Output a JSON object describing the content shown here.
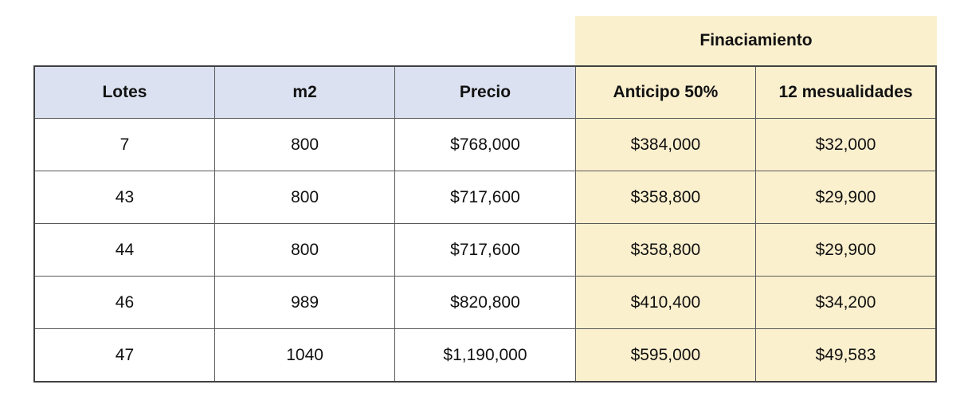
{
  "banner": {
    "title": "Finaciamiento"
  },
  "table": {
    "columns": [
      "Lotes",
      "m2",
      "Precio",
      "Anticipo 50%",
      "12 mesualidades"
    ],
    "rows": [
      [
        "7",
        "800",
        "$768,000",
        "$384,000",
        "$32,000"
      ],
      [
        "43",
        "800",
        "$717,600",
        "$358,800",
        "$29,900"
      ],
      [
        "44",
        "800",
        "$717,600",
        "$358,800",
        "$29,900"
      ],
      [
        "46",
        "989",
        "$820,800",
        "$410,400",
        "$34,200"
      ],
      [
        "47",
        "1040",
        "$1,190,000",
        "$595,000",
        "$49,583"
      ]
    ]
  },
  "colors": {
    "financing_fill": "#fbf0ce",
    "header_fill": "#dbe1f0",
    "border_inner": "#595959",
    "border_outer": "#404040",
    "text": "#111111"
  }
}
